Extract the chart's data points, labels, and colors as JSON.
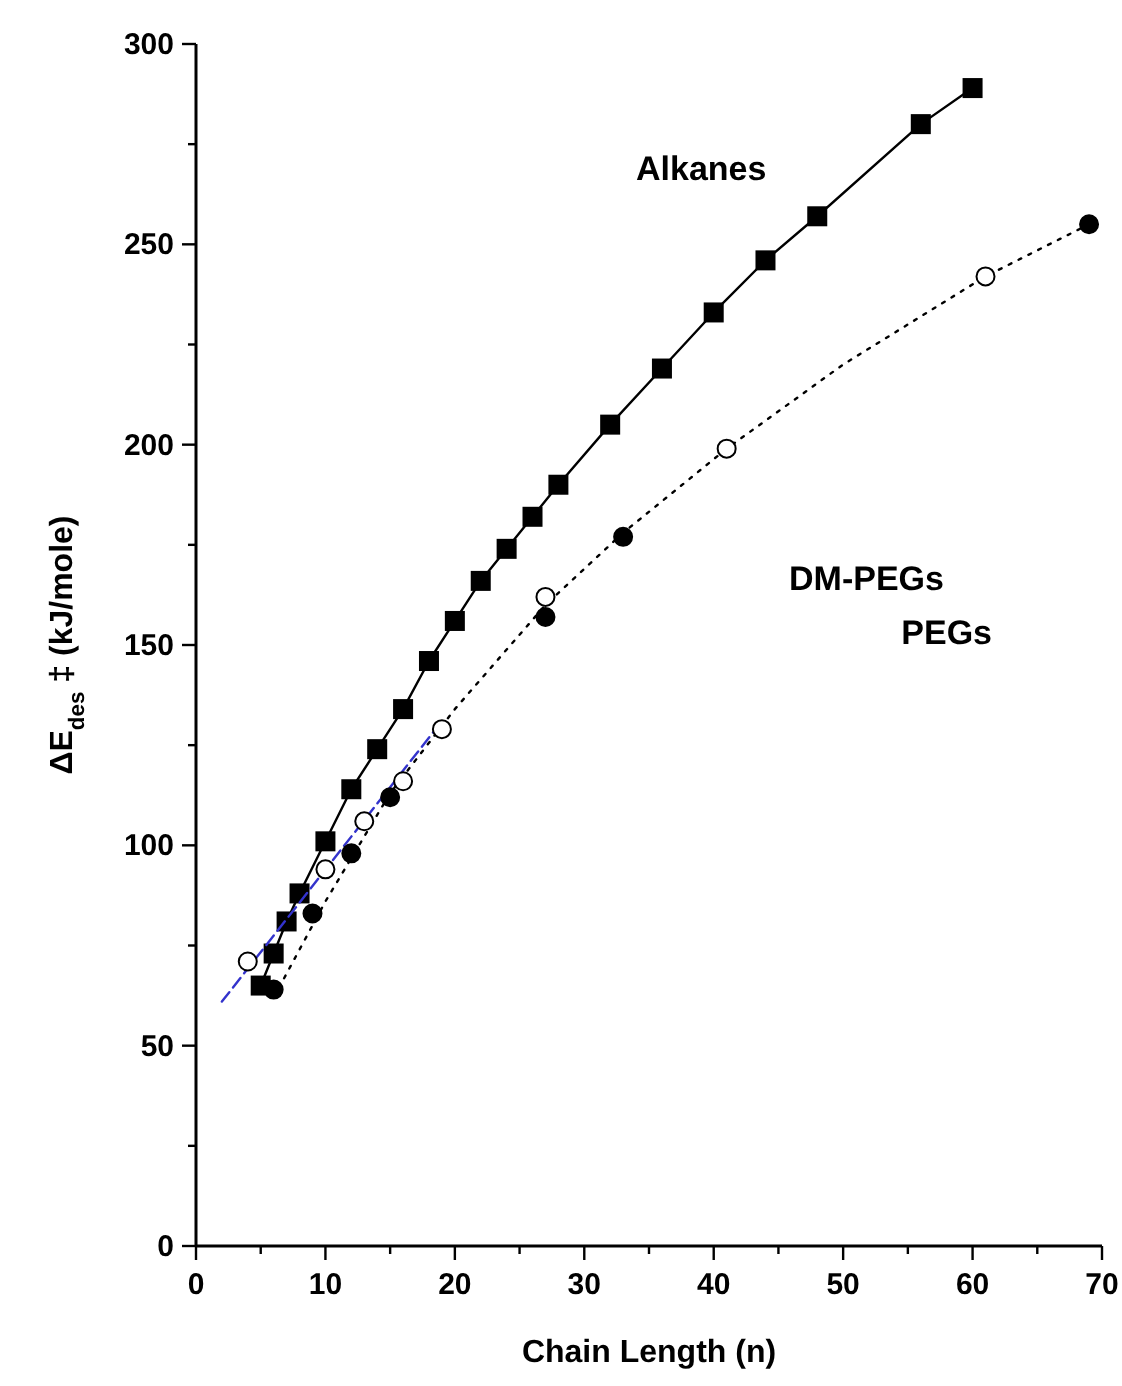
{
  "chart_data": {
    "type": "scatter",
    "xlabel": "Chain Length (n)",
    "ylabel": "ΔE$_{des}$ ‡ (kJ/mole)",
    "xlim": [
      0,
      70
    ],
    "ylim": [
      0,
      300
    ],
    "xticks": [
      0,
      {
        "value": 5,
        "label": null
      },
      10,
      {
        "value": 15,
        "label": null
      },
      20,
      {
        "value": 25,
        "label": null
      },
      30,
      {
        "value": 35,
        "label": null
      },
      40,
      {
        "value": 45,
        "label": null
      },
      50,
      {
        "value": 55,
        "label": null
      },
      60,
      {
        "value": 65,
        "label": null
      },
      70
    ],
    "yticks": [
      0,
      {
        "value": 25,
        "label": null
      },
      50,
      {
        "value": 75,
        "label": null
      },
      100,
      {
        "value": 125,
        "label": null
      },
      150,
      {
        "value": 175,
        "label": null
      },
      200,
      {
        "value": 225,
        "label": null
      },
      250,
      {
        "value": 275,
        "label": null
      },
      300
    ],
    "grid": false,
    "series": [
      {
        "type": "line",
        "color": "#000000",
        "marker": "square",
        "line_style": "solid",
        "x": [
          5,
          6,
          7,
          8,
          10,
          12,
          14,
          16,
          18,
          20,
          22,
          24,
          26,
          28,
          32,
          36,
          40,
          44,
          48,
          56,
          60
        ],
        "values": [
          65,
          73,
          81,
          88,
          101,
          114,
          124,
          134,
          146,
          156,
          166,
          174,
          182,
          190,
          205,
          219,
          233,
          246,
          257,
          280,
          289
        ]
      },
      {
        "type": "line",
        "color": "#000000",
        "marker": "none",
        "line_style": "dotted",
        "x": [
          6,
          10,
          15,
          20,
          27,
          33,
          41,
          50,
          61,
          69
        ],
        "values": [
          62,
          86,
          113,
          134,
          160,
          178,
          199,
          220,
          242,
          255
        ]
      },
      {
        "type": "line",
        "color": "#3333cc",
        "marker": "none",
        "line_style": "dashed",
        "x": [
          2,
          19
        ],
        "values": [
          61,
          131
        ]
      },
      {
        "color": "#000000",
        "marker": "circle",
        "x": [
          6,
          9,
          12,
          15,
          27,
          33,
          69
        ],
        "values": [
          64,
          83,
          98,
          112,
          157,
          177,
          255
        ]
      },
      {
        "color": "#ffffff",
        "marker": "circle",
        "x": [
          4,
          10,
          13,
          16,
          19,
          27,
          41,
          61
        ],
        "values": [
          71,
          94,
          106,
          116,
          129,
          162,
          199,
          242
        ]
      }
    ],
    "annotations": [
      "Alkanes",
      "DM-PEGs",
      "PEGs"
    ]
  }
}
